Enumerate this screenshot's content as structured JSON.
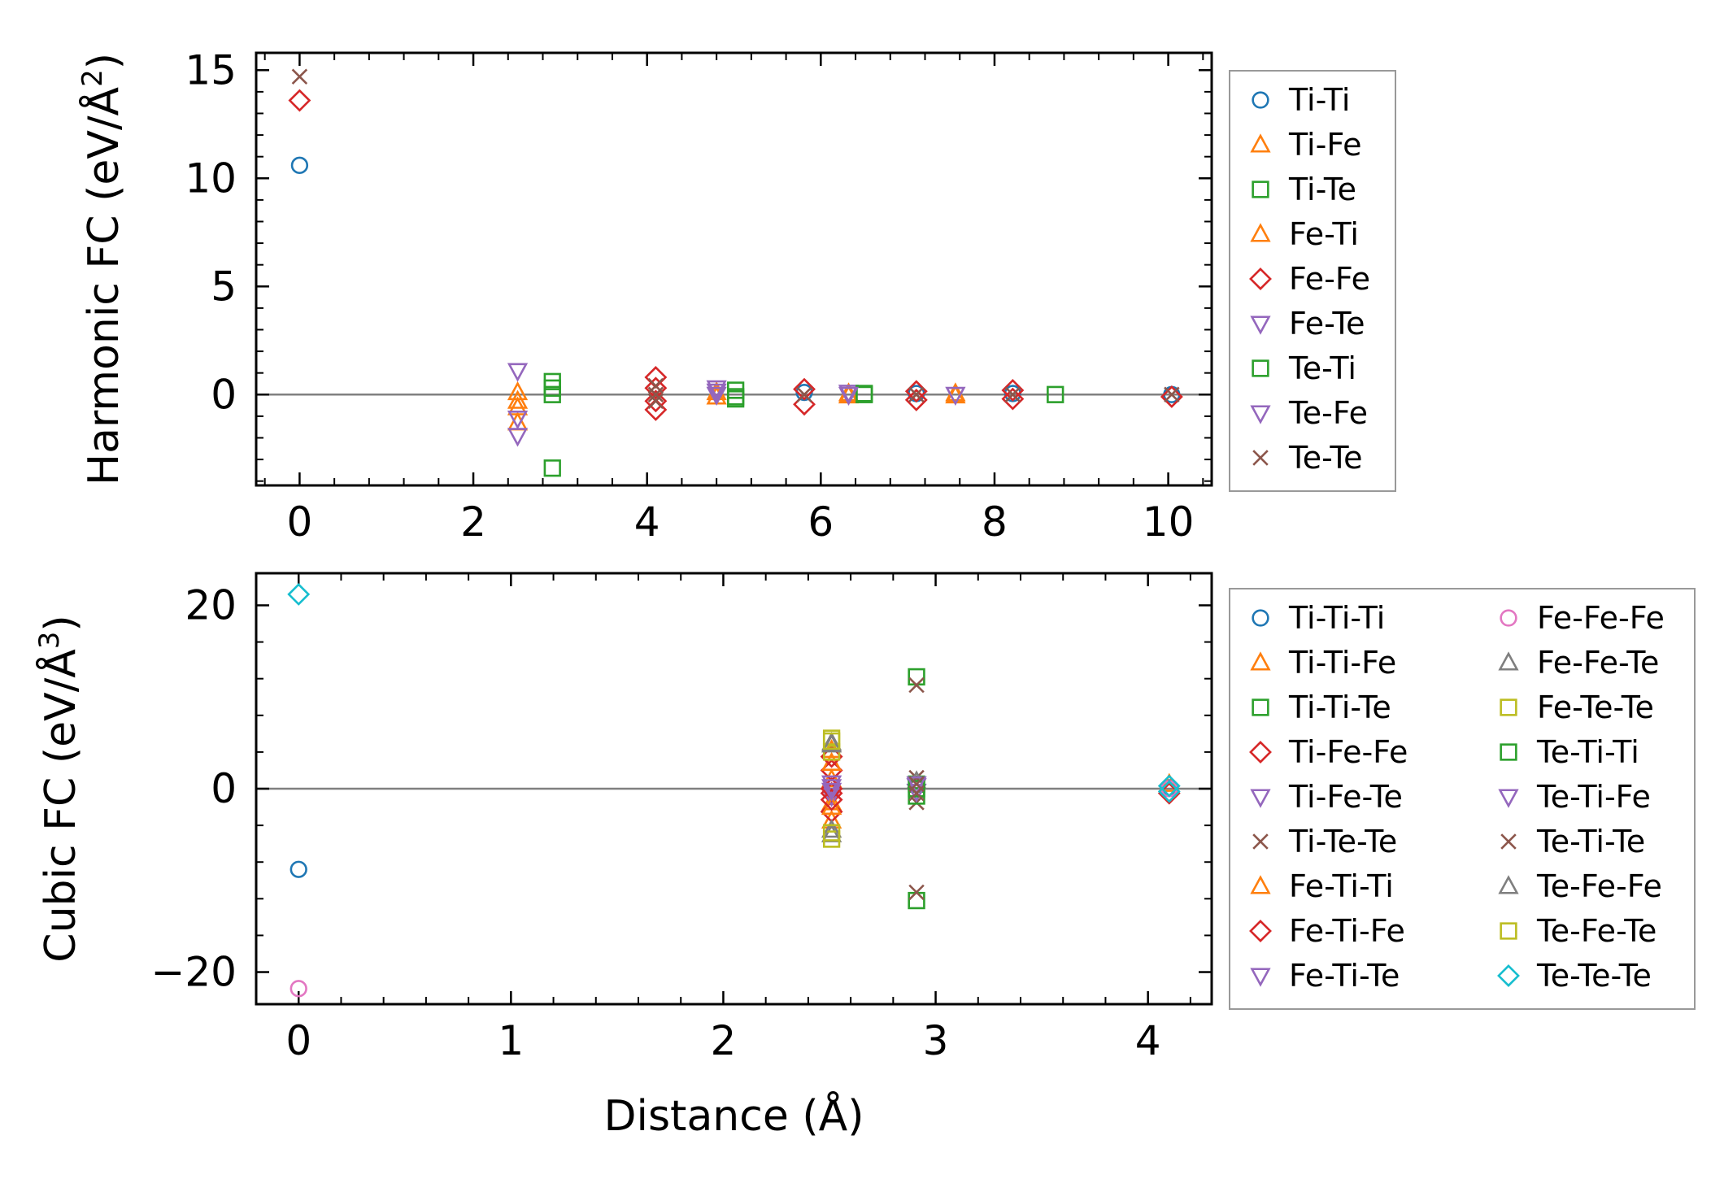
{
  "chart_data": [
    {
      "type": "scatter",
      "title": "",
      "xlabel": "",
      "ylabel": "Harmonic FC (eV/Å²)",
      "ylabel_main": "Harmonic FC (eV/Å",
      "ylabel_sup": "2",
      "ylabel_end": ")",
      "xlim": [
        -0.5,
        10.5
      ],
      "ylim": [
        -4.2,
        15.8
      ],
      "xticks": [
        0,
        2,
        4,
        6,
        8,
        10
      ],
      "xtick_labels": [
        "0",
        "2",
        "4",
        "6",
        "8",
        "10"
      ],
      "yticks": [
        0,
        5,
        10,
        15
      ],
      "ytick_labels": [
        "0",
        "5",
        "10",
        "15"
      ],
      "zero_line": true,
      "legend_position": "outside-right",
      "series": [
        {
          "name": "Ti-Ti",
          "marker": "circle",
          "color": "#1f77b4",
          "x": [
            0,
            5.81,
            7.1,
            8.21,
            10.04
          ],
          "y": [
            10.6,
            0.1,
            0.05,
            0.05,
            0.0
          ]
        },
        {
          "name": "Ti-Fe",
          "marker": "triangle-up",
          "color": "#ff7f0e",
          "x": [
            2.51,
            2.51,
            2.51,
            4.8,
            6.32,
            7.55
          ],
          "y": [
            0.1,
            -0.6,
            -1.3,
            -0.1,
            -0.05,
            -0.05
          ]
        },
        {
          "name": "Ti-Te",
          "marker": "square",
          "color": "#2ca02c",
          "x": [
            2.91,
            2.91,
            2.91,
            5.02,
            5.02,
            6.5,
            8.7
          ],
          "y": [
            0.6,
            0.0,
            -3.4,
            0.2,
            -0.2,
            0.0,
            0.0
          ]
        },
        {
          "name": "Fe-Ti",
          "marker": "triangle-up",
          "color": "#ff7f0e",
          "x": [
            2.51,
            4.8,
            6.32,
            7.55
          ],
          "y": [
            -0.3,
            0.1,
            0.05,
            0.05
          ]
        },
        {
          "name": "Fe-Fe",
          "marker": "diamond",
          "color": "#d62728",
          "x": [
            0,
            4.1,
            4.1,
            4.1,
            4.1,
            5.81,
            5.81,
            7.1,
            7.1,
            8.21,
            8.21,
            10.04
          ],
          "y": [
            13.6,
            0.8,
            0.3,
            -0.3,
            -0.7,
            0.25,
            -0.45,
            0.15,
            -0.25,
            0.2,
            -0.2,
            -0.1
          ]
        },
        {
          "name": "Fe-Te",
          "marker": "triangle-down",
          "color": "#9467bd",
          "x": [
            2.51,
            2.51,
            4.8,
            4.8,
            6.32,
            7.55
          ],
          "y": [
            1.1,
            -1.1,
            0.3,
            0.0,
            0.1,
            0.0
          ]
        },
        {
          "name": "Te-Ti",
          "marker": "square",
          "color": "#2ca02c",
          "x": [
            2.91,
            5.02,
            6.5
          ],
          "y": [
            0.3,
            -0.1,
            0.05
          ]
        },
        {
          "name": "Te-Fe",
          "marker": "triangle-down",
          "color": "#9467bd",
          "x": [
            2.51,
            4.8,
            6.32
          ],
          "y": [
            -1.9,
            0.15,
            0.0
          ]
        },
        {
          "name": "Te-Te",
          "marker": "x",
          "color": "#8c564b",
          "x": [
            0,
            4.1,
            4.1,
            4.1,
            5.81,
            7.1,
            8.21,
            10.04
          ],
          "y": [
            14.7,
            0.4,
            0.0,
            -0.3,
            0.0,
            0.0,
            0.0,
            0.0
          ]
        }
      ],
      "legend_columns": 1
    },
    {
      "type": "scatter",
      "title": "",
      "xlabel": "Distance (Å)",
      "ylabel": "Cubic FC (eV/Å³)",
      "ylabel_main": "Cubic FC (eV/Å",
      "ylabel_sup": "3",
      "ylabel_end": ")",
      "xlim": [
        -0.2,
        4.3
      ],
      "ylim": [
        -23.5,
        23.5
      ],
      "xticks": [
        0,
        1,
        2,
        3,
        4
      ],
      "xtick_labels": [
        "0",
        "1",
        "2",
        "3",
        "4"
      ],
      "yticks": [
        -20,
        0,
        20
      ],
      "ytick_labels": [
        "−20",
        "0",
        "20"
      ],
      "zero_line": true,
      "legend_position": "outside-right",
      "series": [
        {
          "name": "Ti-Ti-Ti",
          "marker": "circle",
          "color": "#1f77b4",
          "x": [
            0,
            4.1
          ],
          "y": [
            -8.8,
            0.1
          ]
        },
        {
          "name": "Ti-Ti-Fe",
          "marker": "triangle-up",
          "color": "#ff7f0e",
          "x": [
            2.51,
            2.51,
            2.51,
            2.51
          ],
          "y": [
            4.2,
            1.0,
            -1.5,
            -3.5
          ]
        },
        {
          "name": "Ti-Ti-Te",
          "marker": "square",
          "color": "#2ca02c",
          "x": [
            2.91,
            2.91,
            2.91
          ],
          "y": [
            12.2,
            0.5,
            -12.2
          ]
        },
        {
          "name": "Ti-Fe-Fe",
          "marker": "diamond",
          "color": "#d62728",
          "x": [
            2.51,
            2.51,
            2.51,
            4.1
          ],
          "y": [
            2.0,
            -0.5,
            -2.5,
            -0.5
          ]
        },
        {
          "name": "Ti-Fe-Te",
          "marker": "triangle-down",
          "color": "#9467bd",
          "x": [
            2.51,
            2.51,
            2.91
          ],
          "y": [
            0.6,
            -0.8,
            0.3
          ]
        },
        {
          "name": "Ti-Te-Te",
          "marker": "x",
          "color": "#8c564b",
          "x": [
            2.91,
            2.91,
            2.91,
            2.91
          ],
          "y": [
            11.3,
            1.2,
            -1.5,
            -11.3
          ]
        },
        {
          "name": "Fe-Ti-Ti",
          "marker": "triangle-up",
          "color": "#ff7f0e",
          "x": [
            2.51,
            2.51,
            4.1
          ],
          "y": [
            2.8,
            -2.0,
            0.5
          ]
        },
        {
          "name": "Fe-Ti-Fe",
          "marker": "diamond",
          "color": "#d62728",
          "x": [
            2.51,
            2.51,
            2.51
          ],
          "y": [
            3.5,
            0.0,
            -1.2
          ]
        },
        {
          "name": "Fe-Ti-Te",
          "marker": "triangle-down",
          "color": "#9467bd",
          "x": [
            2.51,
            2.91
          ],
          "y": [
            -0.2,
            -0.3
          ]
        },
        {
          "name": "Fe-Fe-Fe",
          "marker": "circle",
          "color": "#e377c2",
          "x": [
            0,
            4.1
          ],
          "y": [
            -21.8,
            0.0
          ]
        },
        {
          "name": "Fe-Fe-Te",
          "marker": "triangle-up",
          "color": "#7f7f7f",
          "x": [
            2.51,
            2.51,
            2.91
          ],
          "y": [
            5.0,
            -5.0,
            0.8
          ]
        },
        {
          "name": "Fe-Te-Te",
          "marker": "square",
          "color": "#bcbd22",
          "x": [
            2.51,
            2.51,
            2.51
          ],
          "y": [
            5.5,
            4.0,
            -5.5
          ]
        },
        {
          "name": "Te-Ti-Ti",
          "marker": "square",
          "color": "#2ca02c",
          "x": [
            2.91,
            2.91
          ],
          "y": [
            -0.8,
            0.0
          ]
        },
        {
          "name": "Te-Ti-Fe",
          "marker": "triangle-down",
          "color": "#9467bd",
          "x": [
            2.91,
            2.51
          ],
          "y": [
            0.5,
            0.2
          ]
        },
        {
          "name": "Te-Ti-Te",
          "marker": "x",
          "color": "#8c564b",
          "x": [
            2.91,
            2.91
          ],
          "y": [
            0.5,
            -0.5
          ]
        },
        {
          "name": "Te-Fe-Fe",
          "marker": "triangle-up",
          "color": "#7f7f7f",
          "x": [
            2.51,
            2.51
          ],
          "y": [
            -4.5,
            4.8
          ]
        },
        {
          "name": "Te-Fe-Te",
          "marker": "square",
          "color": "#bcbd22",
          "x": [
            2.51,
            2.51
          ],
          "y": [
            -4.8,
            5.2
          ]
        },
        {
          "name": "Te-Te-Te",
          "marker": "diamond",
          "color": "#17becf",
          "x": [
            0,
            4.1,
            4.1
          ],
          "y": [
            21.2,
            0.3,
            -0.3
          ]
        }
      ],
      "legend_columns": 2
    }
  ]
}
